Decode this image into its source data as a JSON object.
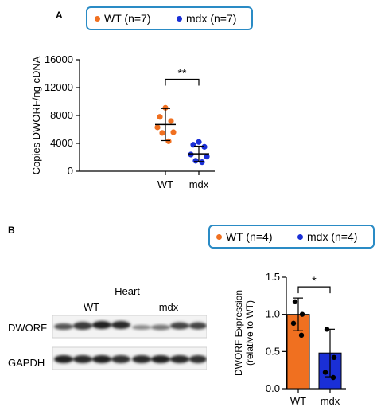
{
  "panelA": {
    "letter": "A",
    "legend": [
      {
        "label": "WT (n=7)",
        "color": "#f07020"
      },
      {
        "label": "mdx (n=7)",
        "color": "#1a2fd6"
      }
    ],
    "significance": "**"
  },
  "panelB": {
    "letter": "B",
    "legend": [
      {
        "label": "WT (n=4)",
        "color": "#f07020"
      },
      {
        "label": "mdx (n=4)",
        "color": "#1a2fd6"
      }
    ],
    "blot": {
      "title": "Heart",
      "group_labels": [
        "WT",
        "mdx"
      ],
      "row_labels": [
        "DWORF",
        "GAPDH"
      ]
    },
    "significance": "*"
  },
  "colors": {
    "wt": "#f07020",
    "mdx": "#1a2fd6",
    "legend_border": "#2a8bc5"
  },
  "chart_data": [
    {
      "type": "scatter",
      "title": "",
      "xlabel": "",
      "ylabel": "Copies DWORF/ng cDNA",
      "categories": [
        "WT",
        "mdx"
      ],
      "ylim": [
        0,
        16000
      ],
      "yticks": [
        0,
        4000,
        8000,
        12000,
        16000
      ],
      "series": [
        {
          "name": "WT",
          "values": [
            9100,
            7800,
            7200,
            6300,
            5600,
            5500,
            4300
          ],
          "mean": 6700,
          "sd": 2300
        },
        {
          "name": "mdx",
          "values": [
            4200,
            3800,
            3500,
            2400,
            2100,
            1500,
            1300
          ],
          "mean": 2500,
          "sd": 1100
        }
      ],
      "significance": "**",
      "grid": false
    },
    {
      "type": "bar",
      "title": "",
      "xlabel": "",
      "ylabel": "DWORF Expression (relative to WT)",
      "ylabel_lines": [
        "DWORF Expression",
        "(relative to WT)"
      ],
      "categories": [
        "WT",
        "mdx"
      ],
      "values": [
        1.0,
        0.48
      ],
      "errors": [
        0.22,
        0.32
      ],
      "points": [
        [
          1.17,
          1.0,
          0.88,
          0.72
        ],
        [
          0.8,
          0.42,
          0.22,
          0.15
        ]
      ],
      "ylim": [
        0,
        1.5
      ],
      "yticks": [
        "0.0",
        "0.5",
        "1.0",
        "1.5"
      ],
      "significance": "*",
      "grid": false
    }
  ]
}
